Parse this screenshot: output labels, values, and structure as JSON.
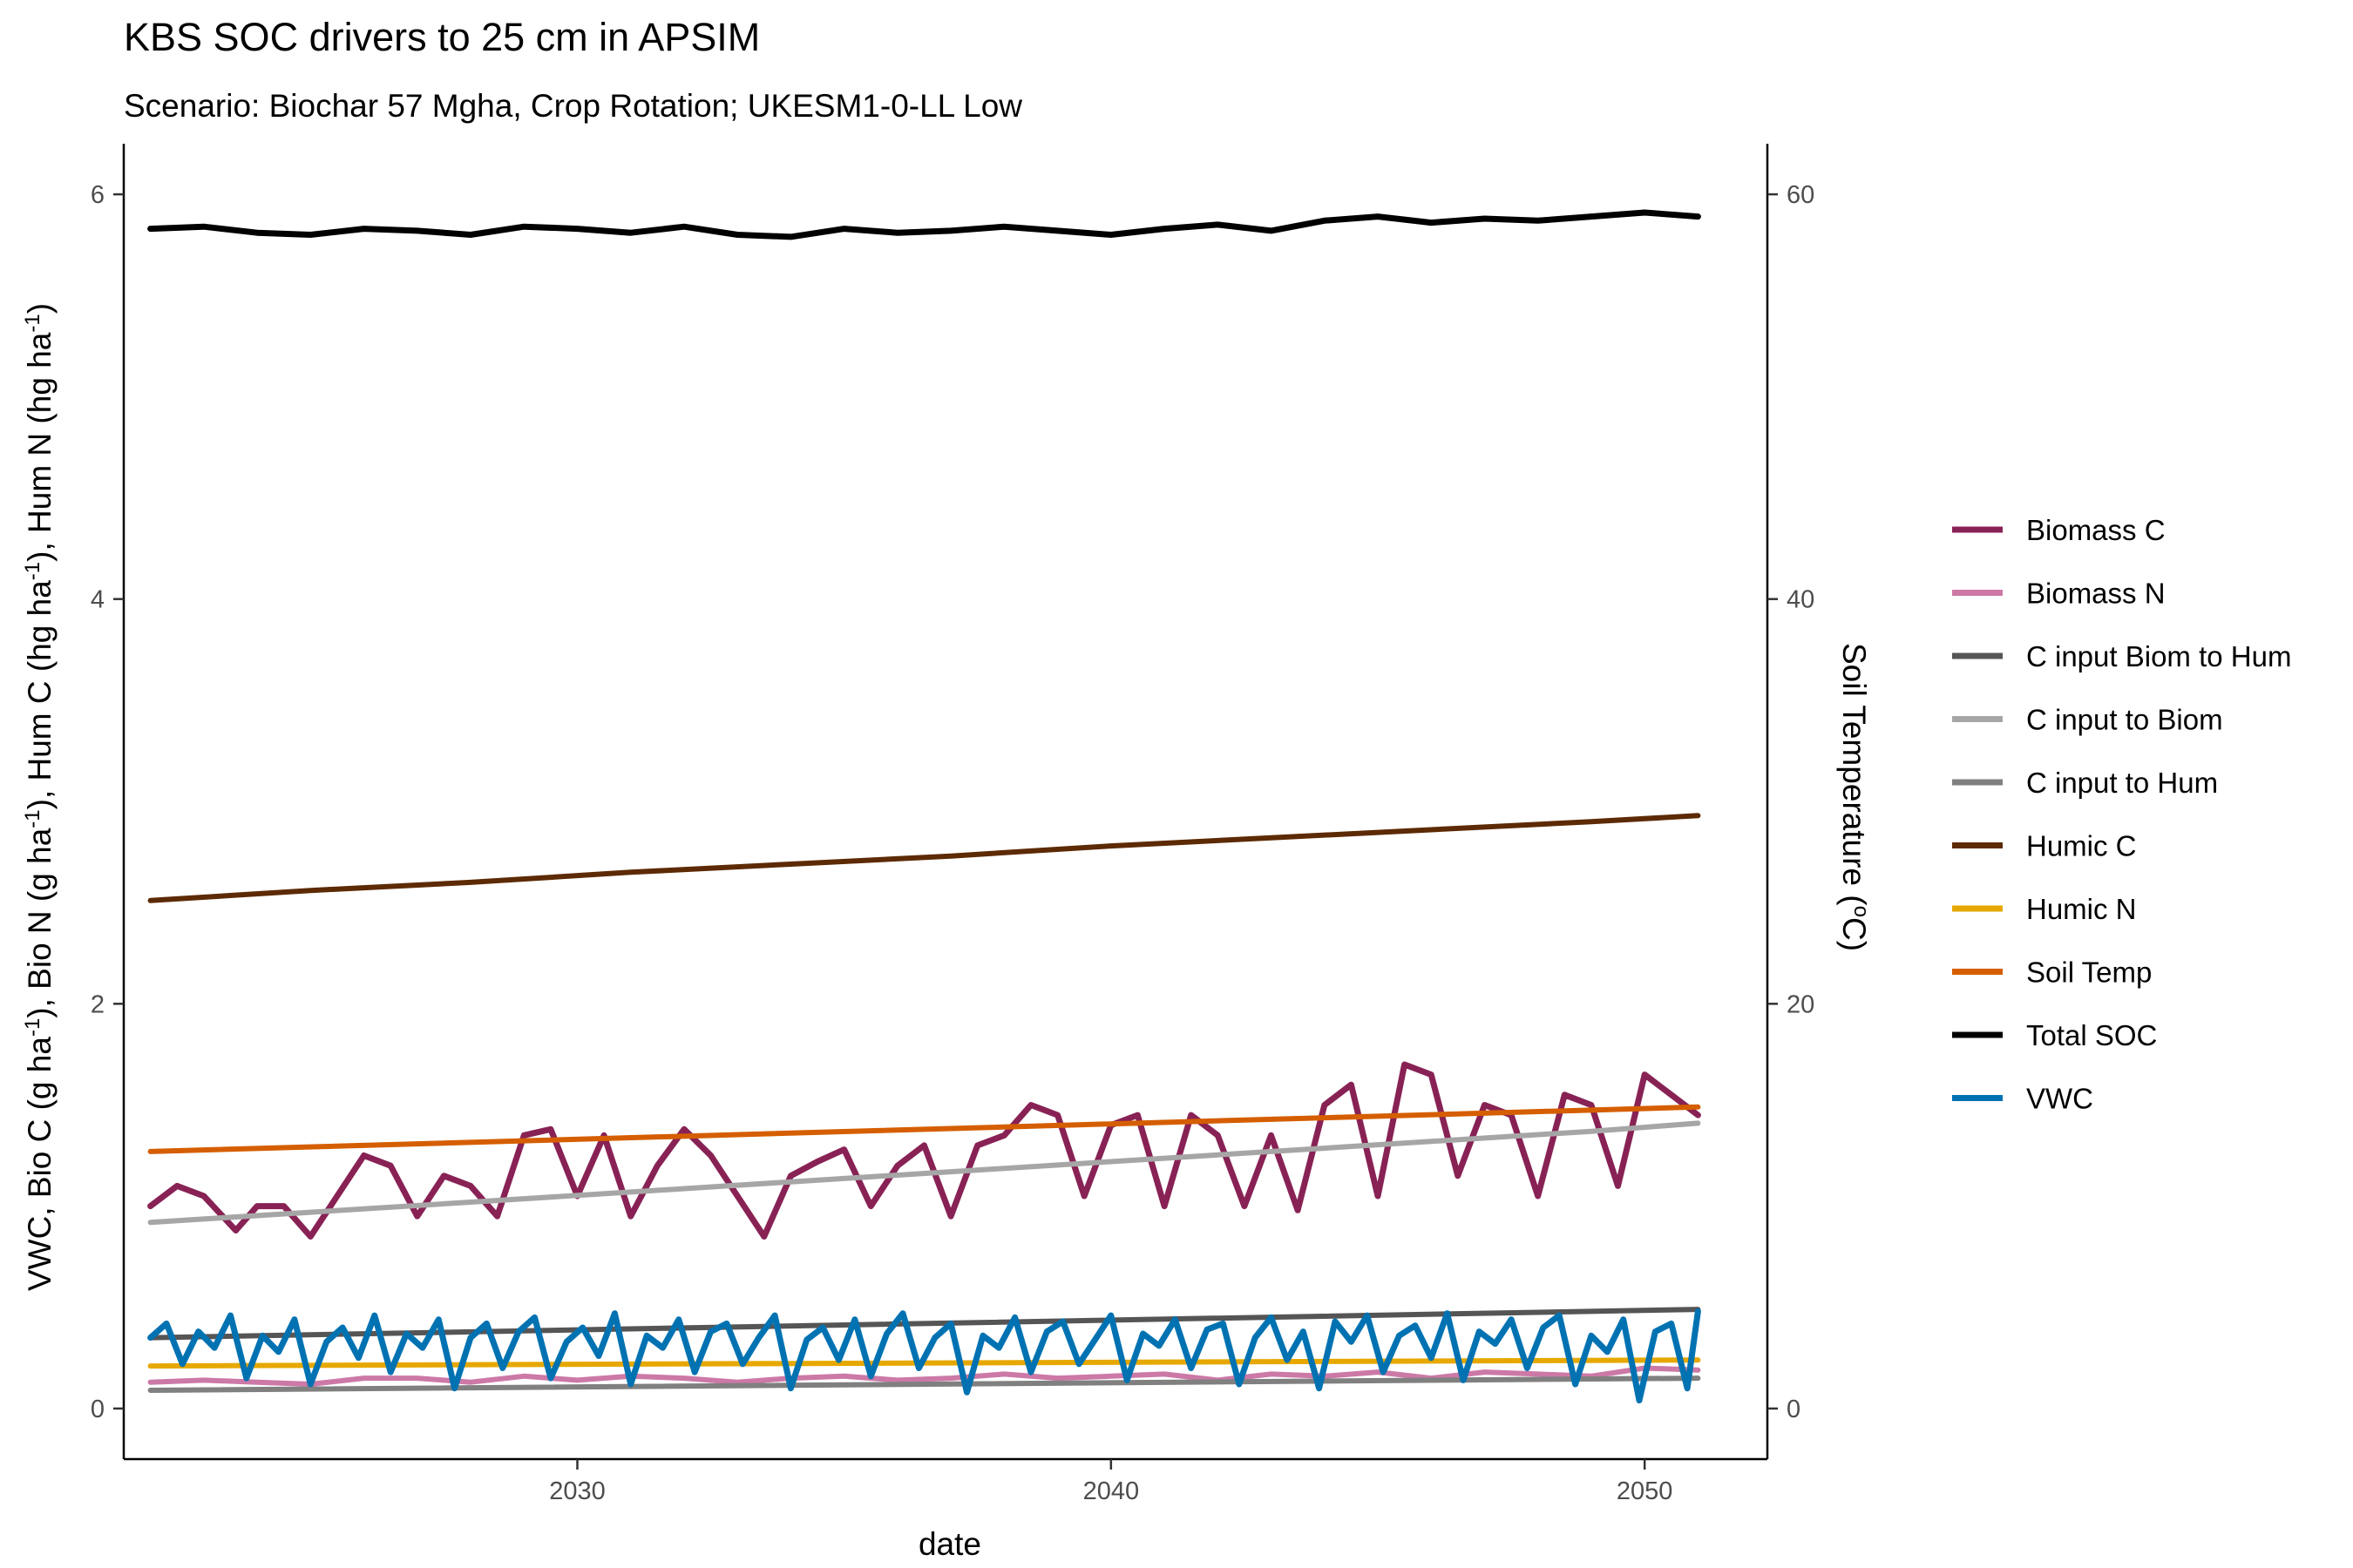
{
  "chart_data": {
    "type": "line",
    "title": "KBS SOC drivers to 25 cm in APSIM",
    "subtitle": "Scenario: Biochar 57 Mgha, Crop Rotation; UKESM1-0-LL Low",
    "xlabel": "date",
    "ylabel_left": {
      "pre": "VWC, Bio C (g ha",
      "sup1": "-1",
      "mid1": "), Bio N (g ha",
      "sup2": "-1",
      "mid2": "), Hum C (hg ha",
      "sup3": "-1",
      "mid3": "), Hum N (hg ha",
      "sup4": "-1",
      "post": ")"
    },
    "ylabel_right": {
      "pre": "Soil Temperature (",
      "sup": "o",
      "post": "C)"
    },
    "xlim": [
      2021.5,
      2052.3
    ],
    "ylim_left": [
      -0.25,
      6.25
    ],
    "ylim_right": [
      -2.5,
      62.5
    ],
    "x_ticks": [
      2030,
      2040,
      2050
    ],
    "y_ticks_left": [
      0,
      2,
      4,
      6
    ],
    "y_ticks_right": [
      0,
      20,
      40,
      60
    ],
    "grid": false,
    "legend_position": "right",
    "series": [
      {
        "name": "Biomass C",
        "color": "#882255",
        "axis": "left",
        "x": [
          2022.0,
          2022.5,
          2023.0,
          2023.6,
          2024.0,
          2024.5,
          2025.0,
          2025.5,
          2026.0,
          2026.5,
          2027.0,
          2027.5,
          2028.0,
          2028.5,
          2029.0,
          2029.5,
          2030.0,
          2030.5,
          2031.0,
          2031.5,
          2032.0,
          2032.5,
          2033.0,
          2033.5,
          2034.0,
          2034.5,
          2035.0,
          2035.5,
          2036.0,
          2036.5,
          2037.0,
          2037.5,
          2038.0,
          2038.5,
          2039.0,
          2039.5,
          2040.0,
          2040.5,
          2041.0,
          2041.5,
          2042.0,
          2042.5,
          2043.0,
          2043.5,
          2044.0,
          2044.5,
          2045.0,
          2045.5,
          2046.0,
          2046.5,
          2047.0,
          2047.5,
          2048.0,
          2048.5,
          2049.0,
          2049.5,
          2050.0,
          2050.5,
          2051.0
        ],
        "values": [
          1.0,
          1.1,
          1.05,
          0.88,
          1.0,
          1.0,
          0.85,
          1.05,
          1.25,
          1.2,
          0.95,
          1.15,
          1.1,
          0.95,
          1.35,
          1.38,
          1.05,
          1.35,
          0.95,
          1.2,
          1.38,
          1.25,
          1.05,
          0.85,
          1.15,
          1.22,
          1.28,
          1.0,
          1.2,
          1.3,
          0.95,
          1.3,
          1.35,
          1.5,
          1.45,
          1.05,
          1.4,
          1.45,
          1.0,
          1.45,
          1.35,
          1.0,
          1.35,
          0.98,
          1.5,
          1.6,
          1.05,
          1.7,
          1.65,
          1.15,
          1.5,
          1.45,
          1.05,
          1.55,
          1.5,
          1.1,
          1.65,
          1.55,
          1.45
        ]
      },
      {
        "name": "Biomass N",
        "color": "#cc79a7",
        "axis": "left",
        "x": [
          2022.0,
          2023,
          2024,
          2025,
          2026,
          2027,
          2028,
          2029,
          2030,
          2031,
          2032,
          2033,
          2034,
          2035,
          2036,
          2037,
          2038,
          2039,
          2040,
          2041,
          2042,
          2043,
          2044,
          2045,
          2046,
          2047,
          2048,
          2049,
          2050,
          2051
        ],
        "values": [
          0.13,
          0.14,
          0.13,
          0.12,
          0.15,
          0.15,
          0.13,
          0.16,
          0.14,
          0.16,
          0.15,
          0.13,
          0.15,
          0.16,
          0.14,
          0.15,
          0.17,
          0.15,
          0.16,
          0.17,
          0.14,
          0.17,
          0.16,
          0.18,
          0.15,
          0.18,
          0.17,
          0.16,
          0.2,
          0.19
        ]
      },
      {
        "name": "C input Biom to Hum",
        "color": "#555555",
        "axis": "left",
        "x": [
          2022.0,
          2051.0
        ],
        "values": [
          0.35,
          0.49
        ]
      },
      {
        "name": "C input to Biom",
        "color": "#a6a6a6",
        "axis": "left",
        "x": [
          2022.0,
          2025,
          2028,
          2031,
          2034,
          2037,
          2040,
          2043,
          2046,
          2049,
          2051.0
        ],
        "values": [
          0.92,
          0.97,
          1.02,
          1.07,
          1.12,
          1.17,
          1.22,
          1.27,
          1.32,
          1.37,
          1.41
        ]
      },
      {
        "name": "C input to Hum",
        "color": "#808080",
        "axis": "left",
        "x": [
          2022.0,
          2051.0
        ],
        "values": [
          0.09,
          0.15
        ]
      },
      {
        "name": "Humic C",
        "color": "#5c2a04",
        "axis": "left",
        "x": [
          2022.0,
          2025,
          2028,
          2031,
          2034,
          2037,
          2040,
          2043,
          2046,
          2049,
          2051.0
        ],
        "values": [
          2.51,
          2.56,
          2.6,
          2.65,
          2.69,
          2.73,
          2.78,
          2.82,
          2.86,
          2.9,
          2.93
        ]
      },
      {
        "name": "Humic N",
        "color": "#e6a800",
        "axis": "left",
        "x": [
          2022.0,
          2051.0
        ],
        "values": [
          0.21,
          0.24
        ]
      },
      {
        "name": "Soil Temp",
        "color": "#d55e00",
        "axis": "right",
        "x": [
          2022.0,
          2051.0
        ],
        "values": [
          12.7,
          14.9
        ]
      },
      {
        "name": "Total SOC",
        "color": "#000000",
        "axis": "left",
        "x": [
          2022.0,
          2023,
          2024,
          2025,
          2026,
          2027,
          2028,
          2029,
          2030,
          2031,
          2032,
          2033,
          2034,
          2035,
          2036,
          2037,
          2038,
          2039,
          2040,
          2041,
          2042,
          2043,
          2044,
          2045,
          2046,
          2047,
          2048,
          2049,
          2050,
          2051.0
        ],
        "values": [
          5.83,
          5.84,
          5.81,
          5.8,
          5.83,
          5.82,
          5.8,
          5.84,
          5.83,
          5.81,
          5.84,
          5.8,
          5.79,
          5.83,
          5.81,
          5.82,
          5.84,
          5.82,
          5.8,
          5.83,
          5.85,
          5.82,
          5.87,
          5.89,
          5.86,
          5.88,
          5.87,
          5.89,
          5.91,
          5.89
        ]
      },
      {
        "name": "VWC",
        "color": "#0072b2",
        "axis": "left",
        "x": [
          2022.0,
          2022.3,
          2022.6,
          2022.9,
          2023.2,
          2023.5,
          2023.8,
          2024.1,
          2024.4,
          2024.7,
          2025.0,
          2025.3,
          2025.6,
          2025.9,
          2026.2,
          2026.5,
          2026.8,
          2027.1,
          2027.4,
          2027.7,
          2028.0,
          2028.3,
          2028.6,
          2028.9,
          2029.2,
          2029.5,
          2029.8,
          2030.1,
          2030.4,
          2030.7,
          2031.0,
          2031.3,
          2031.6,
          2031.9,
          2032.2,
          2032.5,
          2032.8,
          2033.1,
          2033.4,
          2033.7,
          2034.0,
          2034.3,
          2034.6,
          2034.9,
          2035.2,
          2035.5,
          2035.8,
          2036.1,
          2036.4,
          2036.7,
          2037.0,
          2037.3,
          2037.6,
          2037.9,
          2038.2,
          2038.5,
          2038.8,
          2039.1,
          2039.4,
          2039.7,
          2040.0,
          2040.3,
          2040.6,
          2040.9,
          2041.2,
          2041.5,
          2041.8,
          2042.1,
          2042.4,
          2042.7,
          2043.0,
          2043.3,
          2043.6,
          2043.9,
          2044.2,
          2044.5,
          2044.8,
          2045.1,
          2045.4,
          2045.7,
          2046.0,
          2046.3,
          2046.6,
          2046.9,
          2047.2,
          2047.5,
          2047.8,
          2048.1,
          2048.4,
          2048.7,
          2049.0,
          2049.3,
          2049.6,
          2049.9,
          2050.2,
          2050.5,
          2050.8,
          2051.0
        ],
        "values": [
          0.35,
          0.42,
          0.22,
          0.38,
          0.3,
          0.46,
          0.15,
          0.36,
          0.28,
          0.44,
          0.12,
          0.33,
          0.4,
          0.25,
          0.46,
          0.18,
          0.37,
          0.3,
          0.44,
          0.1,
          0.35,
          0.42,
          0.2,
          0.38,
          0.45,
          0.15,
          0.33,
          0.4,
          0.26,
          0.47,
          0.12,
          0.36,
          0.3,
          0.44,
          0.18,
          0.38,
          0.42,
          0.22,
          0.35,
          0.46,
          0.1,
          0.34,
          0.4,
          0.24,
          0.44,
          0.16,
          0.37,
          0.47,
          0.2,
          0.35,
          0.42,
          0.08,
          0.36,
          0.3,
          0.45,
          0.18,
          0.38,
          0.43,
          0.22,
          0.34,
          0.46,
          0.14,
          0.37,
          0.31,
          0.44,
          0.2,
          0.39,
          0.42,
          0.12,
          0.35,
          0.45,
          0.24,
          0.38,
          0.1,
          0.43,
          0.33,
          0.46,
          0.18,
          0.36,
          0.41,
          0.25,
          0.47,
          0.14,
          0.38,
          0.32,
          0.44,
          0.2,
          0.4,
          0.46,
          0.12,
          0.36,
          0.28,
          0.44,
          0.04,
          0.38,
          0.42,
          0.1,
          0.48
        ]
      }
    ]
  }
}
